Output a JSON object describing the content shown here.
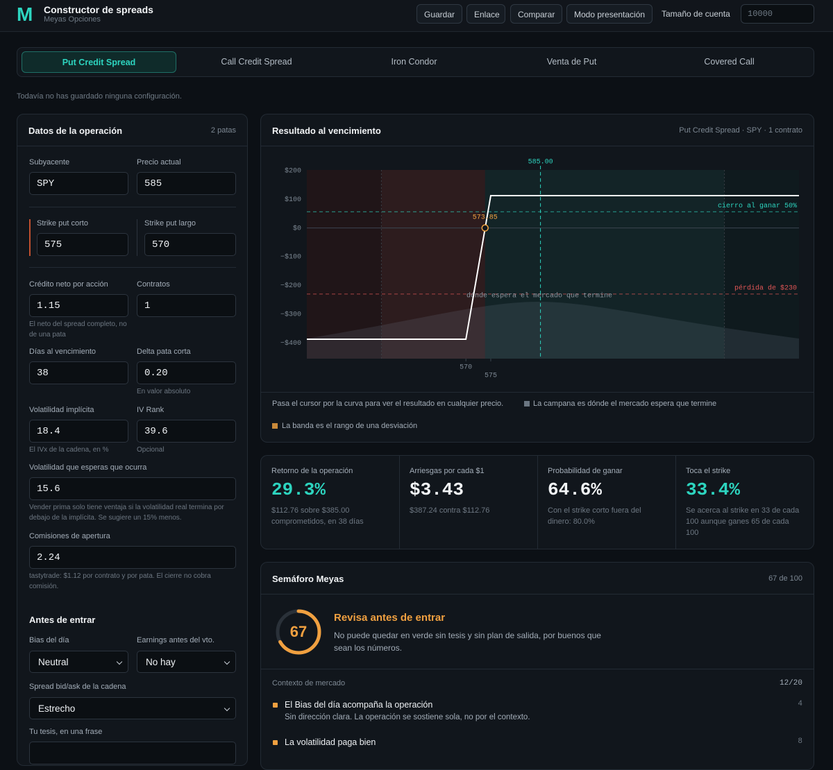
{
  "header": {
    "logo": "M",
    "title": "Constructor de spreads",
    "subtitle": "Meyas Opciones",
    "buttons": [
      "Guardar",
      "Enlace",
      "Comparar",
      "Modo presentación"
    ],
    "account_label": "Tamaño de cuenta",
    "account_value": "10000"
  },
  "tabs": {
    "items": [
      "Put Credit Spread",
      "Call Credit Spread",
      "Iron Condor",
      "Venta de Put",
      "Covered Call"
    ],
    "active": 0
  },
  "saved_note": "Todavía no has guardado ninguna configuración.",
  "form": {
    "title": "Datos de la operación",
    "meta": "2 patas",
    "rows": [
      [
        {
          "label": "Subyacente",
          "value": "SPY"
        },
        {
          "label": "Precio actual",
          "value": "585"
        }
      ],
      [
        {
          "label": "Strike put corto",
          "value": "575"
        },
        {
          "label": "Strike put largo",
          "value": "570"
        }
      ],
      [
        {
          "label": "Crédito neto por acción",
          "value": "1.15",
          "hint": "El neto del spread completo, no de una pata"
        },
        {
          "label": "Contratos",
          "value": "1"
        }
      ],
      [
        {
          "label": "Días al vencimiento",
          "value": "38"
        },
        {
          "label": "Delta pata corta",
          "value": "0.20",
          "hint": "En valor absoluto"
        }
      ],
      [
        {
          "label": "Volatilidad implícita",
          "value": "18.4",
          "hint": "El IVx de la cadena, en %"
        },
        {
          "label": "IV Rank",
          "value": "39.6",
          "hint": "Opcional"
        }
      ],
      [
        {
          "label": "Volatilidad que esperas que ocurra",
          "value": "15.6",
          "hint": "Vender prima solo tiene ventaja si la volatilidad real termina por debajo de la implícita. Se sugiere un 15% menos."
        }
      ],
      [
        {
          "label": "Comisiones de apertura",
          "value": "2.24",
          "hint": "tastytrade: $1.12 por contrato y por pata. El cierre no cobra comisión."
        }
      ]
    ],
    "section_title": "Antes de entrar",
    "selects": [
      [
        {
          "label": "Bias del día",
          "value": "Neutral"
        },
        {
          "label": "Earnings antes del vto.",
          "value": "No hay"
        }
      ],
      [
        {
          "label": "Spread bid/ask de la cadena",
          "value": "Estrecho"
        }
      ]
    ],
    "thesis_label": "Tu tesis, en una frase"
  },
  "result": {
    "title": "Resultado al vencimiento",
    "meta": "Put Credit Spread · SPY · 1 contrato",
    "notes": [
      "Pasa el cursor por la curva para ver el resultado en cualquier precio.",
      "La campana es dónde el mercado espera que termine",
      "La banda es el rango de una desviación"
    ]
  },
  "chart_data": {
    "type": "line",
    "x": [
      538,
      570,
      575,
      637
    ],
    "values": [
      -387.24,
      -387.24,
      112.76,
      112.76
    ],
    "color": "#ffffff",
    "xlim": [
      538,
      637
    ],
    "ylim": [
      -455,
      202
    ],
    "xticks": [
      570,
      575
    ],
    "yticks": [
      {
        "value": 200,
        "label": "$200"
      },
      {
        "value": 100,
        "label": "$100"
      },
      {
        "value": 0,
        "label": "$0"
      },
      {
        "value": -100,
        "label": "−$100"
      },
      {
        "value": -200,
        "label": "−$200"
      },
      {
        "value": -300,
        "label": "−$300"
      },
      {
        "value": -400,
        "label": "−$400"
      }
    ],
    "grid": false,
    "current_price": {
      "value": 585,
      "label": "585.00"
    },
    "breakeven": 573.85,
    "lines": [
      {
        "value": 56.38,
        "label": "cierro al ganar 50%",
        "color": "#2dd4bf"
      },
      {
        "value": -230,
        "label": "pérdida de $230",
        "color": "#e05555"
      }
    ],
    "curve_label": "dónde espera el mercado que termine",
    "sd_band": [
      553,
      622
    ]
  },
  "stats": [
    {
      "label": "Retorno de la operación",
      "value": "29.3%",
      "note": "$112.76 sobre $385.00 comprometidos, en 38 días",
      "color": "#2dd4bf"
    },
    {
      "label": "Arriesgas por cada $1",
      "value": "$3.43",
      "note": "$387.24 contra $112.76",
      "color": "#f2f4f6"
    },
    {
      "label": "Probabilidad de ganar",
      "value": "64.6%",
      "note": "Con el strike corto fuera del dinero: 80.0%",
      "color": "#f2f4f6"
    },
    {
      "label": "Toca el strike",
      "value": "33.4%",
      "note": "Se acerca al strike en 33 de cada 100 aunque ganes 65 de cada 100",
      "color": "#2dd4bf"
    }
  ],
  "score": {
    "title": "Semáforo Meyas",
    "meta": "67 de 100",
    "score": 67,
    "max": 100,
    "headline": "Revisa antes de entrar",
    "text": "No puede quedar en verde sin tesis y sin plan de salida, por buenos que sean los números.",
    "section": {
      "title": "Contexto de mercado",
      "points": "12/20"
    },
    "items": [
      {
        "title": "El Bias del día acompaña la operación",
        "text": "Sin dirección clara. La operación se sostiene sola, no por el contexto.",
        "points": "4"
      },
      {
        "title": "La volatilidad paga bien",
        "points": "8"
      }
    ]
  }
}
